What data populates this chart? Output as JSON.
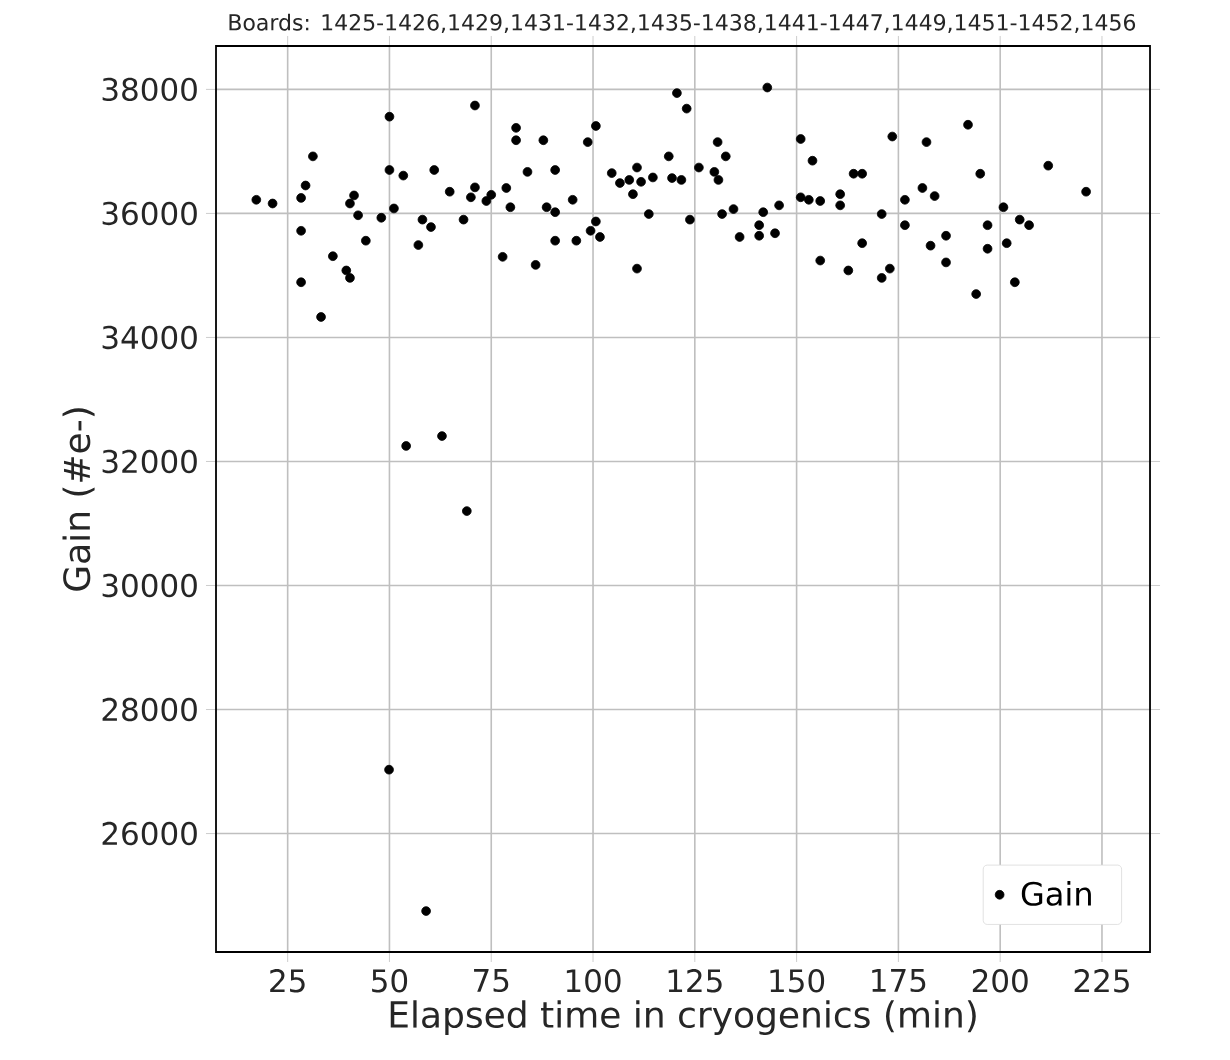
{
  "chart_data": {
    "type": "scatter",
    "title": "Boards: 1425-1426,1429,1431-1432,1435-1438,1441-1447,1449,1451-1452,1456",
    "xlabel": "Elapsed time in cryogenics (min)",
    "ylabel": "Gain (#e-)",
    "xlim": [
      7.4,
      236.8
    ],
    "ylim": [
      24090,
      38700
    ],
    "xticks": [
      25,
      50,
      75,
      100,
      125,
      150,
      175,
      200,
      225
    ],
    "yticks": [
      26000,
      28000,
      30000,
      32000,
      34000,
      36000,
      38000
    ],
    "grid": true,
    "legend": "bottom right",
    "marker": "circle",
    "series": [
      {
        "name": "Gain",
        "color": "#000000",
        "x": [
          17.3,
          21.3,
          28.3,
          29.4,
          31.2,
          28.3,
          28.3,
          33.2,
          36.1,
          40.3,
          41.3,
          39.4,
          40.3,
          42.3,
          44.2,
          48.0,
          50.0,
          50.0,
          51.1,
          53.4,
          54.1,
          62.9,
          69.0,
          49.9,
          59.0,
          57.1,
          58.1,
          60.2,
          61.0,
          64.8,
          68.2,
          70.0,
          71.0,
          71.0,
          73.8,
          75.0,
          77.8,
          78.7,
          79.7,
          81.1,
          81.1,
          83.9,
          85.9,
          87.8,
          88.6,
          90.7,
          90.7,
          90.7,
          95.0,
          95.9,
          98.7,
          100.7,
          99.4,
          100.7,
          101.7,
          104.6,
          106.6,
          108.9,
          110.8,
          109.8,
          111.8,
          110.8,
          113.7,
          114.7,
          118.6,
          119.4,
          120.6,
          121.7,
          123.0,
          123.8,
          126.0,
          129.8,
          130.6,
          130.8,
          132.6,
          131.7,
          134.5,
          136.0,
          140.8,
          140.8,
          141.8,
          142.8,
          144.7,
          145.7,
          151.0,
          151.0,
          153.0,
          153.9,
          155.8,
          155.8,
          160.7,
          160.7,
          162.7,
          164.0,
          166.1,
          166.1,
          170.9,
          170.9,
          172.9,
          173.5,
          176.6,
          176.6,
          180.9,
          181.9,
          182.9,
          183.9,
          186.7,
          186.7,
          192.1,
          194.1,
          195.1,
          196.9,
          196.9,
          200.8,
          201.6,
          203.6,
          204.8,
          207.1,
          211.8,
          221.1
        ],
        "values": [
          36220,
          36160,
          36250,
          36450,
          36920,
          35720,
          34890,
          34330,
          35310,
          36160,
          36290,
          35080,
          34960,
          35970,
          35560,
          35930,
          37560,
          36700,
          36080,
          36610,
          32250,
          32410,
          31200,
          27030,
          24750,
          35490,
          35900,
          35780,
          36700,
          36350,
          35900,
          36260,
          37740,
          36420,
          36200,
          36300,
          35300,
          36410,
          36100,
          37380,
          37180,
          36670,
          35170,
          37180,
          36100,
          36700,
          36020,
          35560,
          36220,
          35560,
          37150,
          37410,
          35720,
          35870,
          35620,
          36650,
          36490,
          36540,
          36740,
          36310,
          36510,
          35110,
          35990,
          36580,
          36920,
          36570,
          37940,
          36540,
          37690,
          35900,
          36740,
          36670,
          37150,
          36540,
          36920,
          35990,
          36070,
          35620,
          35810,
          35640,
          36020,
          38030,
          35680,
          36130,
          37200,
          36260,
          36220,
          36850,
          36200,
          35240,
          36310,
          36130,
          35080,
          36640,
          36640,
          35520,
          35990,
          34960,
          35110,
          37240,
          36220,
          35810,
          36410,
          37150,
          35480,
          36280,
          35640,
          35210,
          37430,
          34700,
          36640,
          35810,
          35430,
          36100,
          35520,
          34890,
          35900,
          35810,
          36770,
          36350
        ]
      }
    ]
  }
}
